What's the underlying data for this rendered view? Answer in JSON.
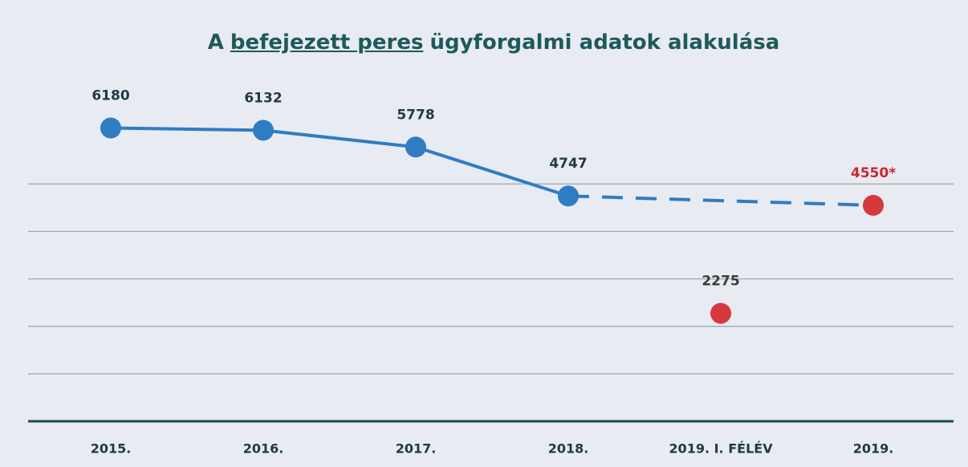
{
  "chart_data": {
    "type": "line",
    "title": {
      "before": "A",
      "underlined": "befejezett peres",
      "after": "ügyforgalmi adatok alakulása"
    },
    "categories": [
      "2015.",
      "2016.",
      "2017.",
      "2018.",
      "2019. I. FÉLÉV",
      "2019."
    ],
    "series": [
      {
        "color": "#2f7cc3",
        "line": "solid",
        "values": [
          6180,
          6132,
          5778,
          4747,
          null,
          null
        ],
        "label_colors": [
          "#1e3a44",
          "#1e3a44",
          "#1e3a44",
          "#1e3a44",
          null,
          null
        ]
      },
      {
        "color": "#d6383d",
        "line": "none",
        "values": [
          null,
          null,
          null,
          null,
          2275,
          4550
        ],
        "value_labels": [
          null,
          null,
          null,
          null,
          "2275",
          "4550*"
        ],
        "label_colors": [
          null,
          null,
          null,
          null,
          "#3a3a3a",
          "#c8282e"
        ]
      }
    ],
    "projection": {
      "style": "dashed",
      "color": "#2f7cc3"
    },
    "ylim": [
      0,
      7000
    ],
    "yticks": [
      0,
      1000,
      2000,
      3000,
      4000,
      5000
    ],
    "grid": true
  }
}
